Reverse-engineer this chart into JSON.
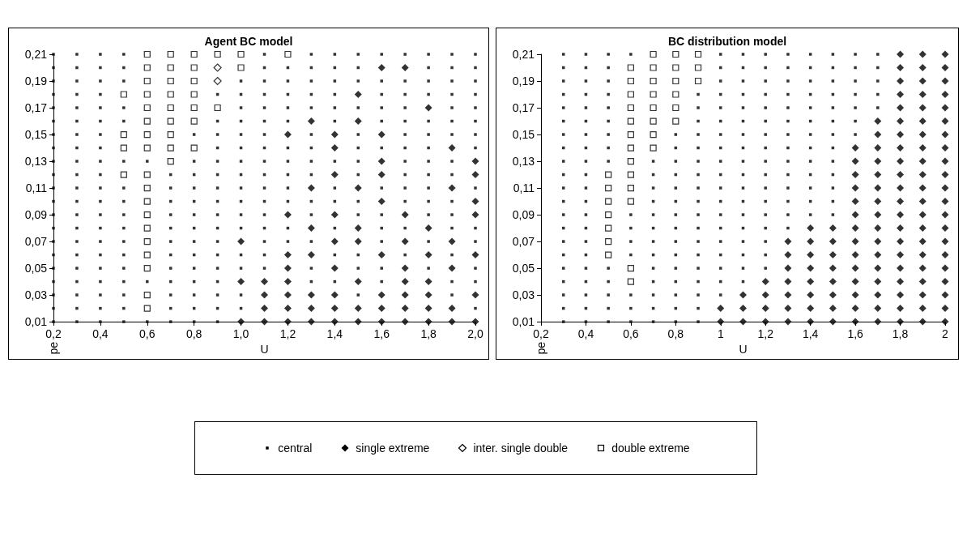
{
  "chart_data": [
    {
      "type": "scatter",
      "title": "Agent BC model",
      "xlabel": "U",
      "ylabel": "pe",
      "legend": "bottom",
      "xlim": [
        0.2,
        2.0
      ],
      "ylim": [
        0.01,
        0.21
      ],
      "xticks": [
        {
          "value": 0.2,
          "label": "0,2"
        },
        {
          "value": 0.4,
          "label": "0,4"
        },
        {
          "value": 0.6,
          "label": "0,6"
        },
        {
          "value": 0.8,
          "label": "0,8"
        },
        {
          "value": 1.0,
          "label": "1,0"
        },
        {
          "value": 1.2,
          "label": "1,2"
        },
        {
          "value": 1.4,
          "label": "1,4"
        },
        {
          "value": 1.6,
          "label": "1,6"
        },
        {
          "value": 1.8,
          "label": "1,8"
        },
        {
          "value": 2.0,
          "label": "2,0"
        }
      ],
      "yticks": [
        {
          "value": 0.01,
          "label": "0,01"
        },
        {
          "value": 0.03,
          "label": "0,03"
        },
        {
          "value": 0.05,
          "label": "0,05"
        },
        {
          "value": 0.07,
          "label": "0,07"
        },
        {
          "value": 0.09,
          "label": "0,09"
        },
        {
          "value": 0.11,
          "label": "0,11"
        },
        {
          "value": 0.13,
          "label": "0,13"
        },
        {
          "value": 0.15,
          "label": "0,15"
        },
        {
          "value": 0.17,
          "label": "0,17"
        },
        {
          "value": 0.19,
          "label": "0,19"
        },
        {
          "value": 0.21,
          "label": "0,21"
        }
      ],
      "series": [
        {
          "name": "central",
          "color": "#000000",
          "marker": "square",
          "x": [
            0.2,
            0.3,
            0.4,
            0.5,
            1.1,
            1.3,
            1.4,
            1.5,
            1.6,
            1.7,
            1.8,
            1.9,
            2.0,
            0.2,
            0.3,
            0.4,
            0.5,
            1.1,
            1.2,
            1.3,
            1.4,
            1.5,
            1.8,
            1.9,
            2.0,
            0.2,
            0.3,
            0.4,
            0.5,
            1.0,
            1.1,
            1.2,
            1.3,
            1.4,
            1.5,
            1.6,
            1.7,
            1.8,
            1.9,
            2.0,
            0.2,
            0.3,
            0.4,
            0.9,
            1.0,
            1.1,
            1.2,
            1.3,
            1.4,
            1.6,
            1.7,
            1.8,
            1.9,
            2.0,
            0.2,
            0.3,
            0.4,
            0.5,
            1.0,
            1.1,
            1.2,
            1.3,
            1.4,
            1.5,
            1.6,
            1.7,
            1.9,
            2.0,
            0.2,
            0.3,
            0.4,
            0.5,
            0.9,
            1.0,
            1.1,
            1.2,
            1.4,
            1.6,
            1.7,
            1.8,
            1.9,
            2.0,
            0.2,
            0.3,
            0.4,
            0.8,
            0.9,
            1.0,
            1.1,
            1.3,
            1.5,
            1.7,
            1.8,
            1.9,
            2.0,
            0.2,
            0.3,
            0.4,
            0.9,
            1.0,
            1.1,
            1.2,
            1.3,
            1.5,
            1.6,
            1.7,
            1.8,
            2.0,
            0.2,
            0.3,
            0.4,
            0.5,
            0.6,
            0.8,
            0.9,
            1.0,
            1.1,
            1.2,
            1.3,
            1.4,
            1.5,
            1.7,
            1.8,
            1.9,
            0.2,
            0.3,
            0.4,
            0.7,
            0.8,
            0.9,
            1.0,
            1.1,
            1.2,
            1.3,
            1.5,
            1.7,
            1.8,
            1.9,
            0.2,
            0.3,
            0.4,
            0.5,
            0.7,
            0.8,
            0.9,
            1.0,
            1.1,
            1.2,
            1.4,
            1.6,
            1.7,
            1.8,
            2.0,
            0.2,
            0.3,
            0.4,
            0.5,
            0.7,
            0.8,
            0.9,
            1.0,
            1.1,
            1.2,
            1.3,
            1.4,
            1.5,
            1.7,
            1.8,
            1.9,
            0.2,
            0.3,
            0.4,
            0.5,
            0.7,
            0.8,
            0.9,
            1.0,
            1.1,
            1.3,
            1.5,
            1.6,
            1.8,
            1.9,
            0.2,
            0.3,
            0.4,
            0.5,
            0.7,
            0.8,
            0.9,
            1.0,
            1.1,
            1.2,
            1.4,
            1.6,
            1.7,
            1.9,
            2.0,
            0.2,
            0.3,
            0.4,
            0.5,
            0.7,
            0.8,
            0.9,
            1.1,
            1.2,
            1.3,
            1.6,
            1.8,
            2.0,
            0.2,
            0.3,
            0.4,
            0.5,
            0.7,
            0.8,
            0.9,
            1.0,
            1.1,
            1.4,
            1.5,
            1.7,
            1.9,
            0.2,
            0.3,
            0.4,
            0.5,
            0.7,
            0.8,
            0.9,
            1.0,
            1.1,
            1.3,
            1.5,
            1.6,
            1.8,
            2.0,
            0.2,
            0.3,
            0.4,
            0.5,
            0.6,
            0.7,
            0.8,
            0.9,
            1.3,
            1.4,
            1.6,
            1.9,
            2.0,
            0.2,
            0.3,
            0.4,
            0.5,
            0.7,
            0.8,
            0.9,
            1.0,
            1.5,
            1.9,
            0.2,
            0.3,
            0.4,
            0.5,
            0.7,
            0.8,
            0.9,
            1.0,
            2.0,
            0.2,
            0.3,
            0.4,
            0.5,
            0.6,
            0.7,
            0.8,
            0.9
          ],
          "values": [
            0.21,
            0.21,
            0.21,
            0.21,
            0.21,
            0.21,
            0.21,
            0.21,
            0.21,
            0.21,
            0.21,
            0.21,
            0.21,
            0.2,
            0.2,
            0.2,
            0.2,
            0.2,
            0.2,
            0.2,
            0.2,
            0.2,
            0.2,
            0.2,
            0.2,
            0.19,
            0.19,
            0.19,
            0.19,
            0.19,
            0.19,
            0.19,
            0.19,
            0.19,
            0.19,
            0.19,
            0.19,
            0.19,
            0.19,
            0.19,
            0.18,
            0.18,
            0.18,
            0.18,
            0.18,
            0.18,
            0.18,
            0.18,
            0.18,
            0.18,
            0.18,
            0.18,
            0.18,
            0.18,
            0.17,
            0.17,
            0.17,
            0.17,
            0.17,
            0.17,
            0.17,
            0.17,
            0.17,
            0.17,
            0.17,
            0.17,
            0.17,
            0.17,
            0.16,
            0.16,
            0.16,
            0.16,
            0.16,
            0.16,
            0.16,
            0.16,
            0.16,
            0.16,
            0.16,
            0.16,
            0.16,
            0.16,
            0.15,
            0.15,
            0.15,
            0.15,
            0.15,
            0.15,
            0.15,
            0.15,
            0.15,
            0.15,
            0.15,
            0.15,
            0.15,
            0.14,
            0.14,
            0.14,
            0.14,
            0.14,
            0.14,
            0.14,
            0.14,
            0.14,
            0.14,
            0.14,
            0.14,
            0.14,
            0.13,
            0.13,
            0.13,
            0.13,
            0.13,
            0.13,
            0.13,
            0.13,
            0.13,
            0.13,
            0.13,
            0.13,
            0.13,
            0.13,
            0.13,
            0.13,
            0.12,
            0.12,
            0.12,
            0.12,
            0.12,
            0.12,
            0.12,
            0.12,
            0.12,
            0.12,
            0.12,
            0.12,
            0.12,
            0.12,
            0.11,
            0.11,
            0.11,
            0.11,
            0.11,
            0.11,
            0.11,
            0.11,
            0.11,
            0.11,
            0.11,
            0.11,
            0.11,
            0.11,
            0.11,
            0.1,
            0.1,
            0.1,
            0.1,
            0.1,
            0.1,
            0.1,
            0.1,
            0.1,
            0.1,
            0.1,
            0.1,
            0.1,
            0.1,
            0.1,
            0.1,
            0.09,
            0.09,
            0.09,
            0.09,
            0.09,
            0.09,
            0.09,
            0.09,
            0.09,
            0.09,
            0.09,
            0.09,
            0.09,
            0.09,
            0.08,
            0.08,
            0.08,
            0.08,
            0.08,
            0.08,
            0.08,
            0.08,
            0.08,
            0.08,
            0.08,
            0.08,
            0.08,
            0.08,
            0.08,
            0.07,
            0.07,
            0.07,
            0.07,
            0.07,
            0.07,
            0.07,
            0.07,
            0.07,
            0.07,
            0.07,
            0.07,
            0.07,
            0.06,
            0.06,
            0.06,
            0.06,
            0.06,
            0.06,
            0.06,
            0.06,
            0.06,
            0.06,
            0.06,
            0.06,
            0.06,
            0.05,
            0.05,
            0.05,
            0.05,
            0.05,
            0.05,
            0.05,
            0.05,
            0.05,
            0.05,
            0.05,
            0.05,
            0.05,
            0.05,
            0.04,
            0.04,
            0.04,
            0.04,
            0.04,
            0.04,
            0.04,
            0.04,
            0.04,
            0.04,
            0.04,
            0.04,
            0.04,
            0.03,
            0.03,
            0.03,
            0.03,
            0.03,
            0.03,
            0.03,
            0.03,
            0.03,
            0.03,
            0.02,
            0.02,
            0.02,
            0.02,
            0.02,
            0.02,
            0.02,
            0.02,
            0.02,
            0.01,
            0.01,
            0.01,
            0.01,
            0.01,
            0.01,
            0.01,
            0.01
          ]
        },
        {
          "name": "single extreme",
          "color": "#000000",
          "marker": "diamond",
          "x": [
            1.6,
            1.7,
            1.5,
            1.8,
            1.3,
            1.5,
            1.2,
            1.4,
            1.6,
            1.4,
            1.9,
            1.6,
            2.0,
            1.4,
            1.6,
            2.0,
            1.3,
            1.5,
            1.9,
            1.6,
            2.0,
            1.2,
            1.4,
            1.7,
            2.0,
            1.3,
            1.5,
            1.8,
            1.0,
            1.4,
            1.5,
            1.7,
            1.9,
            1.2,
            1.3,
            1.6,
            1.8,
            2.0,
            1.2,
            1.4,
            1.7,
            1.9,
            1.0,
            1.1,
            1.2,
            1.5,
            1.7,
            1.8,
            1.1,
            1.2,
            1.3,
            1.4,
            1.6,
            1.7,
            1.8,
            2.0,
            1.1,
            1.2,
            1.3,
            1.4,
            1.5,
            1.6,
            1.7,
            1.8,
            1.9,
            1.0,
            1.1,
            1.2,
            1.3,
            1.4,
            1.5,
            1.6,
            1.7,
            1.8,
            1.9,
            2.0
          ],
          "values": [
            0.2,
            0.2,
            0.18,
            0.17,
            0.16,
            0.16,
            0.15,
            0.15,
            0.15,
            0.14,
            0.14,
            0.13,
            0.13,
            0.12,
            0.12,
            0.12,
            0.11,
            0.11,
            0.11,
            0.1,
            0.1,
            0.09,
            0.09,
            0.09,
            0.09,
            0.08,
            0.08,
            0.08,
            0.07,
            0.07,
            0.07,
            0.07,
            0.07,
            0.06,
            0.06,
            0.06,
            0.06,
            0.06,
            0.05,
            0.05,
            0.05,
            0.05,
            0.04,
            0.04,
            0.04,
            0.04,
            0.04,
            0.04,
            0.03,
            0.03,
            0.03,
            0.03,
            0.03,
            0.03,
            0.03,
            0.03,
            0.02,
            0.02,
            0.02,
            0.02,
            0.02,
            0.02,
            0.02,
            0.02,
            0.02,
            0.01,
            0.01,
            0.01,
            0.01,
            0.01,
            0.01,
            0.01,
            0.01,
            0.01,
            0.01,
            0.01
          ]
        },
        {
          "name": "inter. single double",
          "color": "#ffffff",
          "marker": "diamond",
          "x": [
            0.9,
            0.9
          ],
          "values": [
            0.2,
            0.19
          ]
        },
        {
          "name": "double extreme",
          "color": "#ffffff",
          "marker": "square",
          "x": [
            0.6,
            0.7,
            0.8,
            0.9,
            1.0,
            1.2,
            0.6,
            0.7,
            0.8,
            1.0,
            0.6,
            0.7,
            0.8,
            0.5,
            0.6,
            0.7,
            0.8,
            0.6,
            0.7,
            0.8,
            0.9,
            0.6,
            0.7,
            0.8,
            0.5,
            0.6,
            0.7,
            0.5,
            0.6,
            0.7,
            0.8,
            0.7,
            0.5,
            0.6,
            0.6,
            0.6,
            0.6,
            0.6,
            0.6,
            0.6,
            0.6,
            0.6,
            0.6
          ],
          "values": [
            0.21,
            0.21,
            0.21,
            0.21,
            0.21,
            0.21,
            0.2,
            0.2,
            0.2,
            0.2,
            0.19,
            0.19,
            0.19,
            0.18,
            0.18,
            0.18,
            0.18,
            0.17,
            0.17,
            0.17,
            0.17,
            0.16,
            0.16,
            0.16,
            0.15,
            0.15,
            0.15,
            0.14,
            0.14,
            0.14,
            0.14,
            0.13,
            0.12,
            0.12,
            0.11,
            0.1,
            0.09,
            0.08,
            0.07,
            0.06,
            0.05,
            0.03,
            0.02
          ]
        }
      ]
    },
    {
      "type": "scatter",
      "title": "BC distribution model",
      "xlabel": "U",
      "ylabel": "pe",
      "xlim": [
        0.2,
        2.0
      ],
      "ylim": [
        0.01,
        0.21
      ],
      "xticks": [
        {
          "value": 0.2,
          "label": "0,2"
        },
        {
          "value": 0.4,
          "label": "0,4"
        },
        {
          "value": 0.6,
          "label": "0,6"
        },
        {
          "value": 0.8,
          "label": "0,8"
        },
        1,
        {
          "value": 1.2,
          "label": "1,2"
        },
        {
          "value": 1.4,
          "label": "1,4"
        },
        {
          "value": 1.6,
          "label": "1,6"
        },
        {
          "value": 1.8,
          "label": "1,8"
        },
        2
      ],
      "yticks": [
        {
          "value": 0.01,
          "label": "0,01"
        },
        {
          "value": 0.03,
          "label": "0,03"
        },
        {
          "value": 0.05,
          "label": "0,05"
        },
        {
          "value": 0.07,
          "label": "0,07"
        },
        {
          "value": 0.09,
          "label": "0,09"
        },
        {
          "value": 0.11,
          "label": "0,11"
        },
        {
          "value": 0.13,
          "label": "0,13"
        },
        {
          "value": 0.15,
          "label": "0,15"
        },
        {
          "value": 0.17,
          "label": "0,17"
        },
        {
          "value": 0.19,
          "label": "0,19"
        },
        {
          "value": 0.21,
          "label": "0,21"
        }
      ],
      "series": [
        {
          "color": "#000000",
          "marker": "square",
          "x": [
            0.3,
            0.4,
            0.5,
            0.6,
            1.0,
            1.1,
            1.2,
            1.3,
            1.4,
            1.5,
            1.6,
            1.7,
            0.3,
            0.4,
            0.5,
            1.0,
            1.1,
            1.2,
            1.3,
            1.4,
            1.5,
            1.6,
            1.7,
            0.3,
            0.4,
            0.5,
            1.0,
            1.1,
            1.2,
            1.3,
            1.4,
            1.5,
            1.6,
            1.7,
            0.3,
            0.4,
            0.5,
            0.9,
            1.0,
            1.1,
            1.2,
            1.3,
            1.4,
            1.5,
            1.6,
            1.7,
            0.3,
            0.4,
            0.5,
            0.9,
            1.0,
            1.1,
            1.2,
            1.3,
            1.4,
            1.5,
            1.6,
            1.7,
            0.3,
            0.4,
            0.5,
            0.9,
            1.0,
            1.1,
            1.2,
            1.3,
            1.4,
            1.5,
            1.6,
            0.3,
            0.4,
            0.5,
            0.8,
            0.9,
            1.0,
            1.1,
            1.2,
            1.3,
            1.4,
            1.5,
            1.6,
            0.3,
            0.4,
            0.5,
            0.8,
            0.9,
            1.0,
            1.1,
            1.2,
            1.3,
            1.4,
            1.5,
            0.3,
            0.4,
            0.5,
            0.7,
            0.8,
            0.9,
            1.0,
            1.1,
            1.2,
            1.3,
            1.4,
            1.5,
            0.3,
            0.4,
            0.7,
            0.8,
            0.9,
            1.0,
            1.1,
            1.2,
            1.3,
            1.4,
            1.5,
            0.3,
            0.4,
            0.7,
            0.8,
            0.9,
            1.0,
            1.1,
            1.2,
            1.3,
            1.4,
            1.5,
            0.3,
            0.4,
            0.7,
            0.8,
            0.9,
            1.0,
            1.1,
            1.2,
            1.3,
            1.4,
            1.5,
            0.3,
            0.4,
            0.6,
            0.7,
            0.8,
            0.9,
            1.0,
            1.1,
            1.2,
            1.3,
            1.4,
            1.5,
            0.3,
            0.4,
            0.6,
            0.7,
            0.8,
            0.9,
            1.0,
            1.1,
            1.2,
            1.3,
            0.3,
            0.4,
            0.6,
            0.7,
            0.8,
            0.9,
            1.0,
            1.1,
            1.2,
            0.3,
            0.4,
            0.6,
            0.7,
            0.8,
            0.9,
            1.0,
            1.1,
            1.2,
            0.3,
            0.4,
            0.5,
            0.7,
            0.8,
            0.9,
            1.0,
            1.1,
            1.2,
            0.3,
            0.4,
            0.5,
            0.7,
            0.8,
            0.9,
            1.0,
            1.1,
            0.3,
            0.4,
            0.5,
            0.6,
            0.7,
            0.8,
            0.9,
            1.0,
            0.3,
            0.4,
            0.5,
            0.6,
            0.7,
            0.8,
            0.9,
            0.3,
            0.4,
            0.5,
            0.6,
            0.7,
            0.8,
            0.9
          ],
          "values": [
            0.21,
            0.21,
            0.21,
            0.21,
            0.21,
            0.21,
            0.21,
            0.21,
            0.21,
            0.21,
            0.21,
            0.21,
            0.2,
            0.2,
            0.2,
            0.2,
            0.2,
            0.2,
            0.2,
            0.2,
            0.2,
            0.2,
            0.2,
            0.19,
            0.19,
            0.19,
            0.19,
            0.19,
            0.19,
            0.19,
            0.19,
            0.19,
            0.19,
            0.19,
            0.18,
            0.18,
            0.18,
            0.18,
            0.18,
            0.18,
            0.18,
            0.18,
            0.18,
            0.18,
            0.18,
            0.18,
            0.17,
            0.17,
            0.17,
            0.17,
            0.17,
            0.17,
            0.17,
            0.17,
            0.17,
            0.17,
            0.17,
            0.17,
            0.16,
            0.16,
            0.16,
            0.16,
            0.16,
            0.16,
            0.16,
            0.16,
            0.16,
            0.16,
            0.16,
            0.15,
            0.15,
            0.15,
            0.15,
            0.15,
            0.15,
            0.15,
            0.15,
            0.15,
            0.15,
            0.15,
            0.15,
            0.14,
            0.14,
            0.14,
            0.14,
            0.14,
            0.14,
            0.14,
            0.14,
            0.14,
            0.14,
            0.14,
            0.13,
            0.13,
            0.13,
            0.13,
            0.13,
            0.13,
            0.13,
            0.13,
            0.13,
            0.13,
            0.13,
            0.13,
            0.12,
            0.12,
            0.12,
            0.12,
            0.12,
            0.12,
            0.12,
            0.12,
            0.12,
            0.12,
            0.12,
            0.11,
            0.11,
            0.11,
            0.11,
            0.11,
            0.11,
            0.11,
            0.11,
            0.11,
            0.11,
            0.11,
            0.1,
            0.1,
            0.1,
            0.1,
            0.1,
            0.1,
            0.1,
            0.1,
            0.1,
            0.1,
            0.1,
            0.09,
            0.09,
            0.09,
            0.09,
            0.09,
            0.09,
            0.09,
            0.09,
            0.09,
            0.09,
            0.09,
            0.09,
            0.08,
            0.08,
            0.08,
            0.08,
            0.08,
            0.08,
            0.08,
            0.08,
            0.08,
            0.08,
            0.07,
            0.07,
            0.07,
            0.07,
            0.07,
            0.07,
            0.07,
            0.07,
            0.07,
            0.06,
            0.06,
            0.06,
            0.06,
            0.06,
            0.06,
            0.06,
            0.06,
            0.06,
            0.05,
            0.05,
            0.05,
            0.05,
            0.05,
            0.05,
            0.05,
            0.05,
            0.05,
            0.04,
            0.04,
            0.04,
            0.04,
            0.04,
            0.04,
            0.04,
            0.04,
            0.03,
            0.03,
            0.03,
            0.03,
            0.03,
            0.03,
            0.03,
            0.03,
            0.02,
            0.02,
            0.02,
            0.02,
            0.02,
            0.02,
            0.02,
            0.01,
            0.01,
            0.01,
            0.01,
            0.01,
            0.01,
            0.01
          ]
        },
        {
          "color": "#000000",
          "marker": "diamond",
          "x": [
            1.8,
            1.9,
            2.0,
            1.8,
            1.9,
            2.0,
            1.8,
            1.9,
            2.0,
            1.8,
            1.9,
            2.0,
            1.8,
            1.9,
            2.0,
            1.7,
            1.8,
            1.9,
            2.0,
            1.7,
            1.8,
            1.9,
            2.0,
            1.6,
            1.7,
            1.8,
            1.9,
            2.0,
            1.6,
            1.7,
            1.8,
            1.9,
            2.0,
            1.6,
            1.7,
            1.8,
            1.9,
            2.0,
            1.6,
            1.7,
            1.8,
            1.9,
            2.0,
            1.6,
            1.7,
            1.8,
            1.9,
            2.0,
            1.6,
            1.7,
            1.8,
            1.9,
            2.0,
            1.4,
            1.5,
            1.6,
            1.7,
            1.8,
            1.9,
            2.0,
            1.3,
            1.4,
            1.5,
            1.6,
            1.7,
            1.8,
            1.9,
            2.0,
            1.3,
            1.4,
            1.5,
            1.6,
            1.7,
            1.8,
            1.9,
            2.0,
            1.3,
            1.4,
            1.5,
            1.6,
            1.7,
            1.8,
            1.9,
            2.0,
            1.2,
            1.3,
            1.4,
            1.5,
            1.6,
            1.7,
            1.8,
            1.9,
            2.0,
            1.1,
            1.2,
            1.3,
            1.4,
            1.5,
            1.6,
            1.7,
            1.8,
            1.9,
            2.0,
            1.0,
            1.1,
            1.2,
            1.3,
            1.4,
            1.5,
            1.6,
            1.7,
            1.8,
            1.9,
            2.0,
            1.0,
            1.1,
            1.2,
            1.3,
            1.4,
            1.5,
            1.6,
            1.7,
            1.8,
            1.9,
            2.0
          ],
          "values": [
            0.21,
            0.21,
            0.21,
            0.2,
            0.2,
            0.2,
            0.19,
            0.19,
            0.19,
            0.18,
            0.18,
            0.18,
            0.17,
            0.17,
            0.17,
            0.16,
            0.16,
            0.16,
            0.16,
            0.15,
            0.15,
            0.15,
            0.15,
            0.14,
            0.14,
            0.14,
            0.14,
            0.14,
            0.13,
            0.13,
            0.13,
            0.13,
            0.13,
            0.12,
            0.12,
            0.12,
            0.12,
            0.12,
            0.11,
            0.11,
            0.11,
            0.11,
            0.11,
            0.1,
            0.1,
            0.1,
            0.1,
            0.1,
            0.09,
            0.09,
            0.09,
            0.09,
            0.09,
            0.08,
            0.08,
            0.08,
            0.08,
            0.08,
            0.08,
            0.08,
            0.07,
            0.07,
            0.07,
            0.07,
            0.07,
            0.07,
            0.07,
            0.07,
            0.06,
            0.06,
            0.06,
            0.06,
            0.06,
            0.06,
            0.06,
            0.06,
            0.05,
            0.05,
            0.05,
            0.05,
            0.05,
            0.05,
            0.05,
            0.05,
            0.04,
            0.04,
            0.04,
            0.04,
            0.04,
            0.04,
            0.04,
            0.04,
            0.04,
            0.03,
            0.03,
            0.03,
            0.03,
            0.03,
            0.03,
            0.03,
            0.03,
            0.03,
            0.03,
            0.02,
            0.02,
            0.02,
            0.02,
            0.02,
            0.02,
            0.02,
            0.02,
            0.02,
            0.02,
            0.02,
            0.01,
            0.01,
            0.01,
            0.01,
            0.01,
            0.01,
            0.01,
            0.01,
            0.01,
            0.01,
            0.01
          ]
        },
        {
          "color": "#ffffff",
          "marker": "square",
          "x": [
            0.7,
            0.8,
            0.9,
            0.6,
            0.7,
            0.8,
            0.9,
            0.6,
            0.7,
            0.8,
            0.9,
            0.6,
            0.7,
            0.8,
            0.6,
            0.7,
            0.8,
            0.6,
            0.7,
            0.8,
            0.6,
            0.7,
            0.6,
            0.7,
            0.6,
            0.5,
            0.6,
            0.5,
            0.6,
            0.5,
            0.6,
            0.5,
            0.5,
            0.5,
            0.5,
            0.6,
            0.6
          ],
          "values": [
            0.21,
            0.21,
            0.21,
            0.2,
            0.2,
            0.2,
            0.2,
            0.19,
            0.19,
            0.19,
            0.19,
            0.18,
            0.18,
            0.18,
            0.17,
            0.17,
            0.17,
            0.16,
            0.16,
            0.16,
            0.15,
            0.15,
            0.14,
            0.14,
            0.13,
            0.12,
            0.12,
            0.11,
            0.11,
            0.1,
            0.1,
            0.09,
            0.08,
            0.07,
            0.06,
            0.05,
            0.04
          ]
        }
      ]
    }
  ]
}
